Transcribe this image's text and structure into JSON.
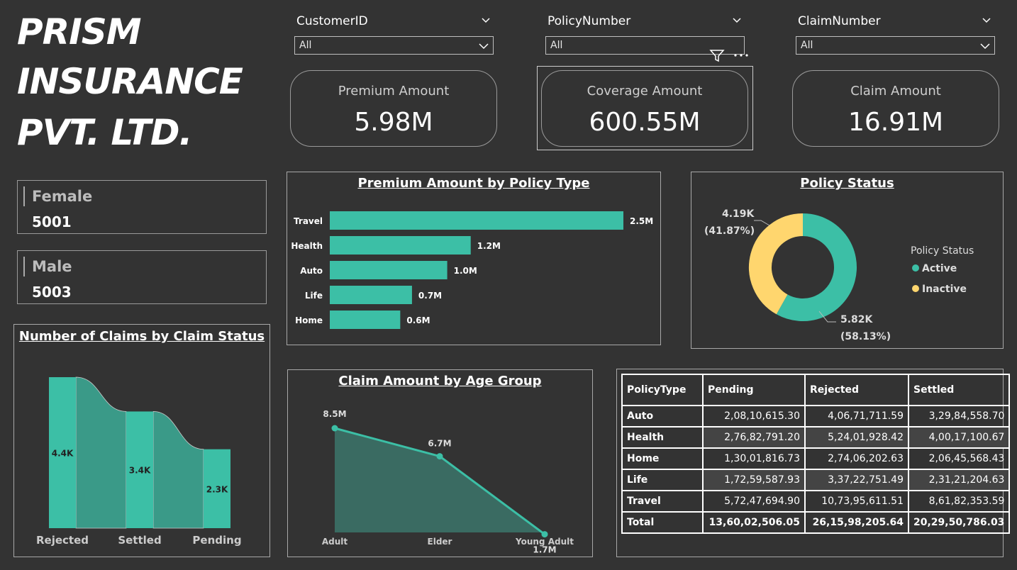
{
  "title": {
    "line1": "PRISM",
    "line2": "INSURANCE",
    "line3": "PVT. LTD."
  },
  "slicers": [
    {
      "label": "CustomerID",
      "value": "All"
    },
    {
      "label": "PolicyNumber",
      "value": "All"
    },
    {
      "label": "ClaimNumber",
      "value": "All"
    }
  ],
  "cards": [
    {
      "label": "Premium Amount",
      "value": "5.98M"
    },
    {
      "label": "Coverage Amount",
      "value": "600.55M"
    },
    {
      "label": "Claim Amount",
      "value": "16.91M"
    }
  ],
  "gender": [
    {
      "label": "Female",
      "value": "5001"
    },
    {
      "label": "Male",
      "value": "5003"
    }
  ],
  "colors": {
    "teal": "#3cbfa6",
    "yellow": "#ffd66e",
    "background": "#333333",
    "dark_teal": "#3a9a88"
  },
  "chart_data": [
    {
      "type": "bar",
      "orientation": "horizontal",
      "title": "Premium Amount by Policy Type",
      "categories": [
        "Travel",
        "Health",
        "Auto",
        "Life",
        "Home"
      ],
      "values": [
        2.5,
        1.2,
        1.0,
        0.7,
        0.6
      ],
      "data_labels": [
        "2.5M",
        "1.2M",
        "1.0M",
        "0.7M",
        "0.6M"
      ]
    },
    {
      "type": "pie",
      "subtype": "donut",
      "title": "Policy Status",
      "legend_title": "Policy Status",
      "legend_position": "right",
      "slices": [
        {
          "name": "Active",
          "value": 5.82,
          "label": "5.82K",
          "pct": "(58.13%)",
          "color": "#3cbfa6"
        },
        {
          "name": "Inactive",
          "value": 4.19,
          "label": "4.19K",
          "pct": "(41.87%)",
          "color": "#ffd66e"
        }
      ]
    },
    {
      "type": "bar",
      "subtype": "ribbon",
      "title": "Number of Claims by Claim Status",
      "categories": [
        "Rejected",
        "Settled",
        "Pending"
      ],
      "values": [
        4.4,
        3.4,
        2.3
      ],
      "data_labels": [
        "4.4K",
        "3.4K",
        "2.3K"
      ]
    },
    {
      "type": "area",
      "title": "Claim Amount by Age Group",
      "categories": [
        "Adult",
        "Elder",
        "Young Adult"
      ],
      "values": [
        8.5,
        6.7,
        1.7
      ],
      "data_labels": [
        "8.5M",
        "6.7M",
        "1.7M"
      ]
    },
    {
      "type": "table",
      "columns": [
        "PolicyType",
        "Pending",
        "Rejected",
        "Settled"
      ],
      "rows": [
        [
          "Auto",
          "2,08,10,615.30",
          "4,06,71,711.59",
          "3,29,84,558.70"
        ],
        [
          "Health",
          "2,76,82,791.20",
          "5,24,01,928.42",
          "4,00,17,100.67"
        ],
        [
          "Home",
          "1,30,01,816.73",
          "2,74,06,202.63",
          "2,06,45,568.43"
        ],
        [
          "Life",
          "1,72,59,587.93",
          "3,37,22,751.49",
          "2,31,21,204.63"
        ],
        [
          "Travel",
          "5,72,47,694.90",
          "10,73,95,611.51",
          "8,61,82,353.59"
        ]
      ],
      "total": [
        "Total",
        "13,60,02,506.05",
        "26,15,98,205.64",
        "20,29,50,786.03"
      ]
    }
  ]
}
